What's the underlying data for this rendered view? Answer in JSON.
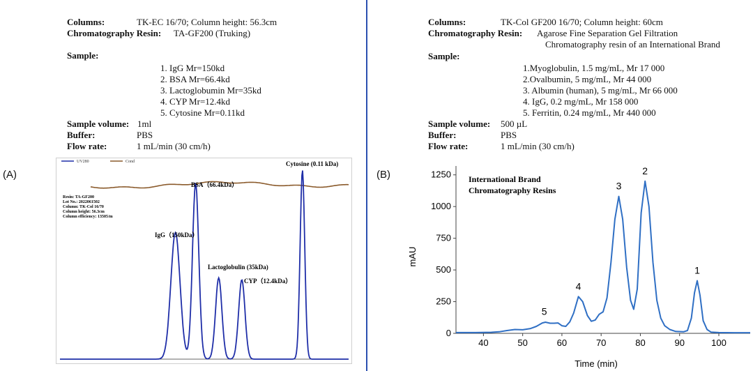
{
  "panel_a": {
    "label": "(A)",
    "info": {
      "columns_label": "Columns:",
      "columns_value": "TK-EC 16/70; Column height: 56.3cm",
      "resin_label": "Chromatography Resin:",
      "resin_value": "TA-GF200 (Truking)",
      "sample_label": "Sample:",
      "samples": [
        "1. IgG Mr=150kd",
        "2. BSA Mr=66.4kd",
        "3. Lactoglobumin Mr=35kd",
        "4. CYP Mr=12.4kd",
        "5. Cytosine  Mr=0.11kd"
      ],
      "volume_label": "Sample volume:",
      "volume_value": "1ml",
      "buffer_label": "Buffer:",
      "buffer_value": "PBS",
      "flow_label": "Flow rate:",
      "flow_value": "1 mL/min (30 cm/h)"
    },
    "legend": [
      "UV280",
      "Cond"
    ],
    "resin_box": [
      "Resin: TA-GF200",
      "Lot No.: 2022061502",
      "Column: TK-Col 16/70",
      "Column height: 56.3cm",
      "Column efficiency: 13505/m"
    ],
    "peak_labels": {
      "igg": "IgG（150kDa）",
      "bsa": "BSA（66.4kDa）",
      "lacto": "Lactoglobulin (35kDa)",
      "cyp": "CYP（12.4kDa）",
      "cytosine": "Cytosine (0.11 kDa)"
    },
    "colors": {
      "uv": "#1f2ea8",
      "cond": "#8a5a2b"
    },
    "chart_data": {
      "type": "line",
      "xlabel": "",
      "ylabel": "",
      "note": "no axis ticks printed; relative elution time and absorbance",
      "series": [
        {
          "name": "UV280",
          "peaks": [
            {
              "label": "IgG (150kDa)",
              "x": 0.4,
              "y": 0.67
            },
            {
              "label": "BSA (66.4kDa)",
              "x": 0.47,
              "y": 0.93
            },
            {
              "label": "Lactoglobulin (35kDa)",
              "x": 0.55,
              "y": 0.43
            },
            {
              "label": "CYP (12.4kDa)",
              "x": 0.63,
              "y": 0.42
            },
            {
              "label": "Cytosine (0.11 kDa)",
              "x": 0.84,
              "y": 1.0
            }
          ]
        },
        {
          "name": "Cond",
          "level": 0.97
        }
      ]
    }
  },
  "panel_b": {
    "label": "(B)",
    "info": {
      "columns_label": "Columns:",
      "columns_value": "TK-Col GF200 16/70; Column height: 60cm",
      "resin_label": "Chromatography Resin:",
      "resin_value_1": "Agarose Fine Separation Gel Filtration",
      "resin_value_2": "Chromatography resin of an International Brand",
      "sample_label": "Sample:",
      "samples": [
        "1.Myoglobulin, 1.5 mg/mL, Mr 17 000",
        "2.Ovalbumin, 5 mg/mL, Mr 44 000",
        "3. Albumin (human), 5 mg/mL, Mr 66 000",
        "4. IgG, 0.2 mg/mL, Mr 158 000",
        "5. Ferritin, 0.24 mg/mL, Mr 440 000"
      ],
      "volume_label": "Sample volume:",
      "volume_value": "500 µL",
      "buffer_label": "Buffer:",
      "buffer_value": "PBS",
      "flow_label": "Flow rate:",
      "flow_value": "1 mL/min (30 cm/h)"
    },
    "chart_title_1": "International Brand",
    "chart_title_2": "Chromatography Resins",
    "color": "#2f6fc4",
    "chart_data": {
      "type": "line",
      "xlabel": "Time (min)",
      "ylabel": "mAU",
      "xlim": [
        33,
        108
      ],
      "ylim": [
        0,
        1320
      ],
      "xticks": [
        40,
        50,
        60,
        70,
        80,
        90,
        100
      ],
      "yticks": [
        0,
        250,
        500,
        750,
        1000,
        1250
      ],
      "peaks": [
        {
          "label": "5",
          "x": 55.5,
          "y": 90
        },
        {
          "label": "4",
          "x": 64.2,
          "y": 290
        },
        {
          "label": "3",
          "x": 74.5,
          "y": 1080
        },
        {
          "label": "2",
          "x": 81.2,
          "y": 1200
        },
        {
          "label": "1",
          "x": 94.5,
          "y": 415
        }
      ],
      "series": [
        {
          "name": "",
          "x": [
            33,
            38,
            42,
            44,
            46,
            48,
            50,
            52,
            53.5,
            55,
            55.8,
            57,
            58,
            59,
            60,
            61,
            62,
            63,
            64.2,
            65.3,
            66.5,
            67.5,
            68.5,
            69.5,
            70.5,
            71.5,
            72.5,
            73.5,
            74.5,
            75.5,
            76.5,
            77.5,
            78.3,
            79.2,
            80.2,
            81.2,
            82.2,
            83.2,
            84.2,
            85.2,
            86.2,
            87.5,
            89,
            91,
            92,
            93,
            93.8,
            94.5,
            95.2,
            96,
            97,
            98,
            100,
            104,
            108
          ],
          "y": [
            6,
            6,
            8,
            12,
            22,
            30,
            28,
            38,
            55,
            82,
            88,
            80,
            80,
            82,
            60,
            55,
            90,
            160,
            290,
            250,
            140,
            95,
            105,
            150,
            170,
            280,
            560,
            900,
            1080,
            900,
            520,
            260,
            190,
            350,
            950,
            1200,
            1000,
            560,
            260,
            120,
            60,
            30,
            15,
            12,
            22,
            120,
            320,
            415,
            300,
            100,
            30,
            10,
            6,
            5,
            5
          ]
        }
      ]
    }
  }
}
